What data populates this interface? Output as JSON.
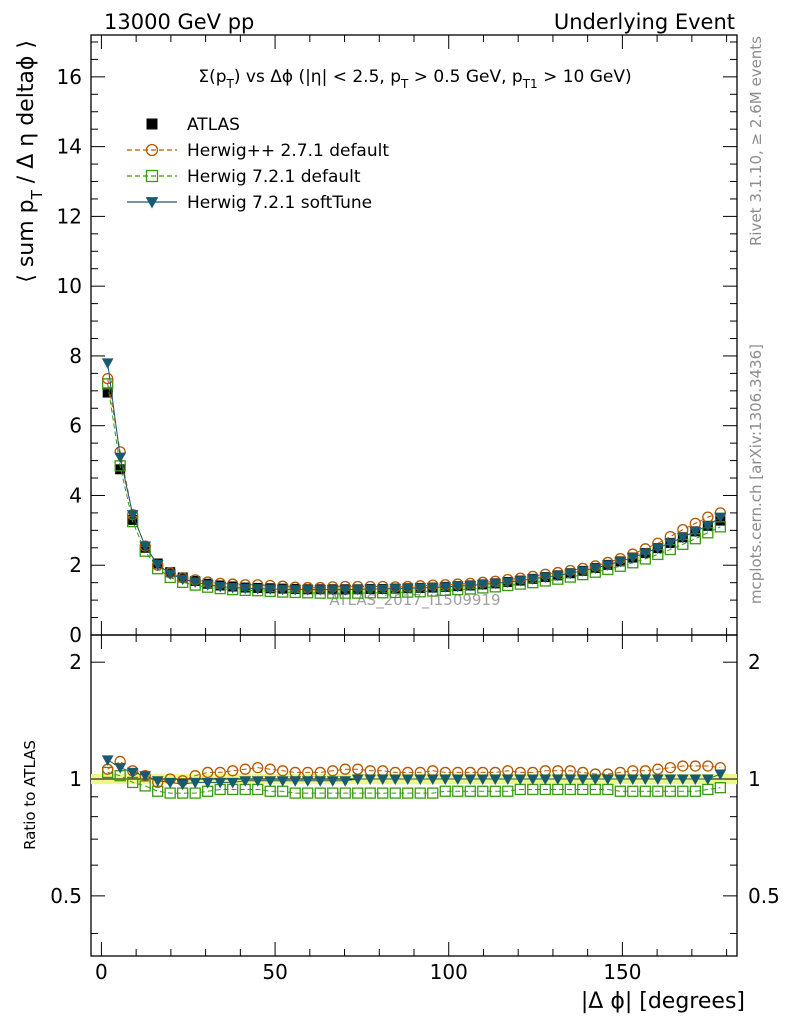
{
  "header": {
    "left": "13000 GeV pp",
    "right": "Underlying Event"
  },
  "side_labels": {
    "rivet": "Rivet 3.1.10, ≥ 2.6M events",
    "mcplots": "mcplots.cern.ch [arXiv:1306.3436]"
  },
  "watermark": "ATLAS_2017_I1509919",
  "chart_data": [
    {
      "type": "scatter",
      "panel": "main",
      "title": "Σ(pT) vs Δϕ (|η| < 2.5, pT > 0.5 GeV, pT1 > 10 GeV)",
      "ylabel": "⟨ sum pT / Δ η deltaϕ ⟩",
      "xlim": [
        -3,
        183
      ],
      "ylim": [
        0,
        17.2
      ],
      "yticks": [
        0,
        2,
        4,
        6,
        8,
        10,
        12,
        14,
        16
      ],
      "legend_position": "top-left",
      "x": [
        1.8,
        5.4,
        9.0,
        12.6,
        16.2,
        19.8,
        23.4,
        27.0,
        30.6,
        34.2,
        37.8,
        41.4,
        45.0,
        48.6,
        52.2,
        55.8,
        59.4,
        63.0,
        66.6,
        70.2,
        73.8,
        77.4,
        81.0,
        84.6,
        88.2,
        91.8,
        95.4,
        99.0,
        102.6,
        106.2,
        109.8,
        113.4,
        117.0,
        120.6,
        124.2,
        127.8,
        131.4,
        135.0,
        138.6,
        142.2,
        145.8,
        149.4,
        153.0,
        156.6,
        160.2,
        163.8,
        167.4,
        171.0,
        174.6,
        178.2
      ],
      "series": [
        {
          "name": "ATLAS",
          "color": "#000000",
          "marker": "filled-square",
          "values": [
            6.95,
            4.75,
            3.3,
            2.5,
            2.05,
            1.8,
            1.65,
            1.55,
            1.47,
            1.42,
            1.39,
            1.36,
            1.35,
            1.34,
            1.33,
            1.32,
            1.31,
            1.31,
            1.31,
            1.31,
            1.31,
            1.32,
            1.32,
            1.33,
            1.34,
            1.35,
            1.36,
            1.38,
            1.4,
            1.42,
            1.45,
            1.48,
            1.52,
            1.56,
            1.61,
            1.66,
            1.71,
            1.77,
            1.84,
            1.92,
            2.01,
            2.11,
            2.22,
            2.35,
            2.49,
            2.64,
            2.8,
            2.97,
            3.13,
            3.28
          ]
        },
        {
          "name": "Herwig++ 2.7.1 default",
          "color": "#b35900",
          "marker": "open-circle",
          "line": "dashed",
          "values": [
            7.35,
            5.25,
            3.45,
            2.55,
            2.0,
            1.78,
            1.64,
            1.58,
            1.52,
            1.48,
            1.46,
            1.44,
            1.44,
            1.42,
            1.4,
            1.37,
            1.36,
            1.36,
            1.38,
            1.39,
            1.39,
            1.39,
            1.39,
            1.38,
            1.39,
            1.41,
            1.43,
            1.44,
            1.46,
            1.48,
            1.51,
            1.54,
            1.59,
            1.63,
            1.68,
            1.74,
            1.79,
            1.85,
            1.91,
            1.98,
            2.08,
            2.19,
            2.32,
            2.47,
            2.63,
            2.82,
            3.02,
            3.2,
            3.38,
            3.5
          ]
        },
        {
          "name": "Herwig 7.2.1 default",
          "color": "#3a9a0f",
          "marker": "open-square",
          "line": "dashed",
          "values": [
            7.2,
            4.85,
            3.25,
            2.4,
            1.9,
            1.65,
            1.51,
            1.43,
            1.37,
            1.33,
            1.3,
            1.28,
            1.27,
            1.25,
            1.23,
            1.22,
            1.21,
            1.2,
            1.2,
            1.2,
            1.2,
            1.21,
            1.21,
            1.22,
            1.23,
            1.24,
            1.26,
            1.28,
            1.3,
            1.32,
            1.35,
            1.38,
            1.42,
            1.46,
            1.5,
            1.55,
            1.6,
            1.66,
            1.73,
            1.8,
            1.88,
            1.97,
            2.07,
            2.18,
            2.31,
            2.45,
            2.6,
            2.76,
            2.93,
            3.1
          ]
        },
        {
          "name": "Herwig 7.2.1 softTune",
          "color": "#1a5a6e",
          "marker": "filled-triangle-down",
          "line": "solid",
          "values": [
            7.8,
            5.1,
            3.45,
            2.55,
            2.02,
            1.75,
            1.6,
            1.52,
            1.44,
            1.39,
            1.36,
            1.34,
            1.33,
            1.32,
            1.31,
            1.3,
            1.3,
            1.3,
            1.3,
            1.3,
            1.31,
            1.32,
            1.32,
            1.33,
            1.34,
            1.35,
            1.36,
            1.38,
            1.4,
            1.42,
            1.45,
            1.48,
            1.52,
            1.56,
            1.61,
            1.66,
            1.71,
            1.77,
            1.84,
            1.92,
            2.01,
            2.11,
            2.22,
            2.35,
            2.49,
            2.64,
            2.8,
            2.97,
            3.13,
            3.38
          ]
        }
      ]
    },
    {
      "type": "scatter",
      "panel": "ratio",
      "xlabel": "|Δ ϕ| [degrees]",
      "ylabel": "Ratio to ATLAS",
      "xlim": [
        -3,
        183
      ],
      "ylim": [
        0.35,
        2.35
      ],
      "yscale": "log",
      "yticks": [
        0.5,
        1,
        2
      ],
      "xticks": [
        0,
        50,
        100,
        150
      ],
      "band": {
        "lower": 0.97,
        "upper": 1.03,
        "color": "#f0f78a"
      },
      "series": [
        {
          "name": "Herwig++ 2.7.1 default",
          "values": [
            1.06,
            1.11,
            1.05,
            1.02,
            0.98,
            1.0,
            0.99,
            1.02,
            1.04,
            1.04,
            1.05,
            1.06,
            1.07,
            1.06,
            1.05,
            1.04,
            1.04,
            1.04,
            1.05,
            1.06,
            1.06,
            1.05,
            1.05,
            1.04,
            1.04,
            1.04,
            1.05,
            1.04,
            1.04,
            1.04,
            1.04,
            1.04,
            1.05,
            1.04,
            1.04,
            1.05,
            1.05,
            1.05,
            1.04,
            1.03,
            1.03,
            1.04,
            1.05,
            1.05,
            1.06,
            1.07,
            1.08,
            1.08,
            1.08,
            1.07
          ]
        },
        {
          "name": "Herwig 7.2.1 default",
          "values": [
            1.04,
            1.02,
            0.98,
            0.96,
            0.93,
            0.92,
            0.92,
            0.92,
            0.93,
            0.94,
            0.94,
            0.94,
            0.94,
            0.93,
            0.93,
            0.92,
            0.92,
            0.92,
            0.92,
            0.92,
            0.92,
            0.92,
            0.92,
            0.92,
            0.92,
            0.92,
            0.92,
            0.93,
            0.93,
            0.93,
            0.93,
            0.93,
            0.93,
            0.94,
            0.94,
            0.94,
            0.94,
            0.94,
            0.94,
            0.94,
            0.94,
            0.93,
            0.93,
            0.93,
            0.93,
            0.93,
            0.93,
            0.93,
            0.94,
            0.95
          ]
        },
        {
          "name": "Herwig 7.2.1 softTune",
          "values": [
            1.12,
            1.07,
            1.04,
            1.02,
            0.99,
            0.98,
            0.97,
            0.98,
            0.98,
            0.98,
            0.98,
            0.99,
            0.99,
            0.99,
            0.99,
            0.99,
            0.99,
            0.99,
            0.99,
            0.99,
            1.0,
            1.0,
            1.0,
            1.0,
            1.0,
            1.0,
            1.0,
            1.0,
            1.0,
            1.0,
            1.0,
            1.0,
            1.0,
            1.0,
            1.0,
            1.0,
            1.0,
            1.0,
            1.0,
            1.0,
            1.0,
            1.0,
            1.0,
            1.0,
            1.0,
            1.0,
            1.0,
            1.0,
            1.0,
            1.03
          ]
        }
      ]
    }
  ]
}
